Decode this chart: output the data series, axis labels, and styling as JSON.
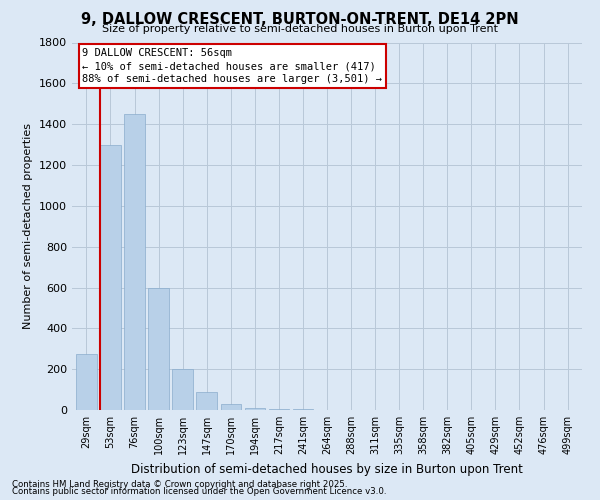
{
  "title": "9, DALLOW CRESCENT, BURTON-ON-TRENT, DE14 2PN",
  "subtitle": "Size of property relative to semi-detached houses in Burton upon Trent",
  "xlabel": "Distribution of semi-detached houses by size in Burton upon Trent",
  "ylabel": "Number of semi-detached properties",
  "footnote1": "Contains HM Land Registry data © Crown copyright and database right 2025.",
  "footnote2": "Contains public sector information licensed under the Open Government Licence v3.0.",
  "annotation_title": "9 DALLOW CRESCENT: 56sqm",
  "annotation_line1": "← 10% of semi-detached houses are smaller (417)",
  "annotation_line2": "88% of semi-detached houses are larger (3,501) →",
  "categories": [
    "29sqm",
    "53sqm",
    "76sqm",
    "100sqm",
    "123sqm",
    "147sqm",
    "170sqm",
    "194sqm",
    "217sqm",
    "241sqm",
    "264sqm",
    "288sqm",
    "311sqm",
    "335sqm",
    "358sqm",
    "382sqm",
    "405sqm",
    "429sqm",
    "452sqm",
    "476sqm",
    "499sqm"
  ],
  "values": [
    275,
    1300,
    1450,
    600,
    200,
    90,
    30,
    10,
    5,
    3,
    2,
    1,
    1,
    1,
    0,
    0,
    0,
    0,
    0,
    0,
    0
  ],
  "bar_color": "#b8d0e8",
  "background_color": "#dce8f5",
  "grid_color": "#b8c8d8",
  "ylim": [
    0,
    1800
  ],
  "yticks": [
    0,
    200,
    400,
    600,
    800,
    1000,
    1200,
    1400,
    1600,
    1800
  ],
  "subject_bar_index": 1,
  "annotation_box_facecolor": "#ffffff",
  "annotation_border_color": "#cc0000",
  "subject_line_color": "#cc0000"
}
